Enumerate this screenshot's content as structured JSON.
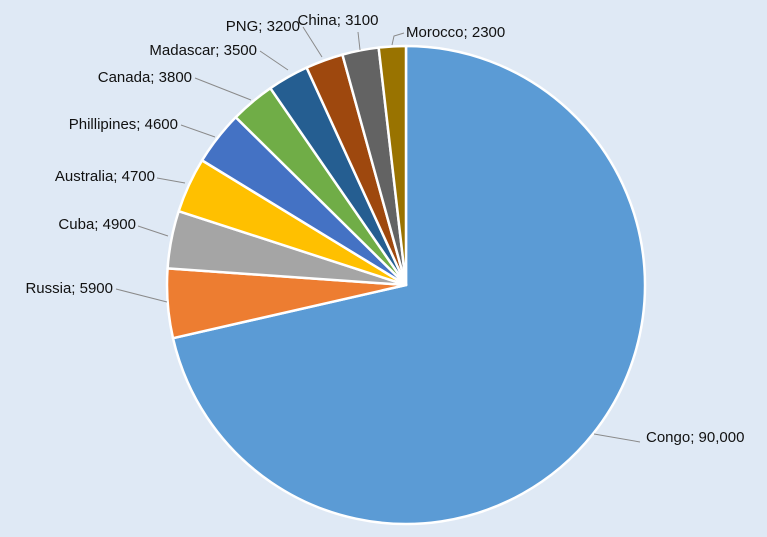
{
  "chart_data": {
    "type": "pie",
    "title": "",
    "start_angle_deg": 0,
    "direction": "clockwise",
    "slices": [
      {
        "label": "Congo",
        "value": 90000,
        "display": "Congo; 90,000",
        "color": "#5b9bd5"
      },
      {
        "label": "Russia",
        "value": 5900,
        "display": "Russia; 5900",
        "color": "#ed7d31"
      },
      {
        "label": "Cuba",
        "value": 4900,
        "display": "Cuba; 4900",
        "color": "#a5a5a5"
      },
      {
        "label": "Australia",
        "value": 4700,
        "display": "Australia; 4700",
        "color": "#ffc000"
      },
      {
        "label": "Phillipines",
        "value": 4600,
        "display": "Phillipines; 4600",
        "color": "#4472c4"
      },
      {
        "label": "Canada",
        "value": 3800,
        "display": "Canada; 3800",
        "color": "#70ad47"
      },
      {
        "label": "Madascar",
        "value": 3500,
        "display": "Madascar; 3500",
        "color": "#255e91"
      },
      {
        "label": "PNG",
        "value": 3200,
        "display": "PNG; 3200",
        "color": "#9e480e"
      },
      {
        "label": "China",
        "value": 3100,
        "display": "China; 3100",
        "color": "#636363"
      },
      {
        "label": "Morocco",
        "value": 2300,
        "display": "Morocco; 2300",
        "color": "#997300"
      }
    ],
    "legend": "none",
    "data_labels": "outside with leader lines"
  }
}
